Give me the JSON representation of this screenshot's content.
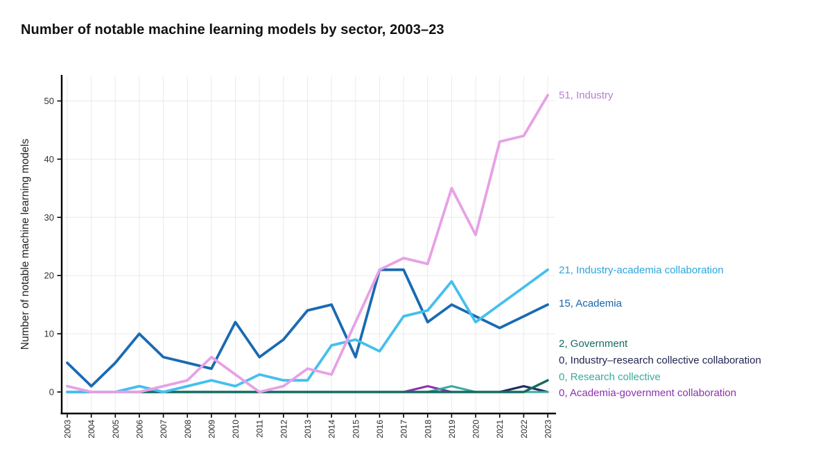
{
  "chart_data": {
    "type": "line",
    "title": "Number of notable machine learning models by sector, 2003–23",
    "ylabel": "Number of notable machine learning models",
    "xlabel": "",
    "grid": true,
    "legend_position": "right-annotations",
    "x": [
      2003,
      2004,
      2005,
      2006,
      2007,
      2008,
      2009,
      2010,
      2011,
      2012,
      2013,
      2014,
      2015,
      2016,
      2017,
      2018,
      2019,
      2020,
      2021,
      2022,
      2023
    ],
    "yticks": [
      0,
      10,
      20,
      30,
      40,
      50
    ],
    "ylim": [
      0,
      54
    ],
    "series": [
      {
        "name": "Industry",
        "label": "51, Industry",
        "final_value": 51,
        "color": "#e7a1e5",
        "label_color": "#b87fd0",
        "values": [
          1,
          0,
          0,
          0,
          1,
          2,
          6,
          3,
          0,
          1,
          4,
          3,
          12,
          21,
          23,
          22,
          35,
          27,
          43,
          44,
          51
        ]
      },
      {
        "name": "Industry-academia collaboration",
        "label": "21, Industry-academia collaboration",
        "final_value": 21,
        "color": "#45bfee",
        "label_color": "#2da4dc",
        "values": [
          0,
          0,
          0,
          1,
          0,
          1,
          2,
          1,
          3,
          2,
          2,
          8,
          9,
          7,
          13,
          14,
          19,
          12,
          15,
          18,
          21
        ]
      },
      {
        "name": "Academia",
        "label": "15, Academia",
        "final_value": 15,
        "color": "#1a6ab3",
        "label_color": "#1565ac",
        "values": [
          5,
          1,
          5,
          10,
          6,
          5,
          4,
          12,
          6,
          9,
          14,
          15,
          6,
          21,
          21,
          12,
          15,
          13,
          11,
          13,
          15
        ]
      },
      {
        "name": "Government",
        "label": "2, Government",
        "final_value": 2,
        "color": "#156a60",
        "label_color": "#156a60",
        "values": [
          0,
          0,
          0,
          0,
          0,
          0,
          0,
          0,
          0,
          0,
          0,
          0,
          0,
          0,
          0,
          0,
          0,
          0,
          0,
          0,
          2
        ]
      },
      {
        "name": "Industry–research collective collaboration",
        "label": "0, Industry–research collective collaboration",
        "final_value": 0,
        "color": "#1d2f5f",
        "label_color": "#22234f",
        "values": [
          0,
          0,
          0,
          0,
          0,
          0,
          0,
          0,
          0,
          0,
          0,
          0,
          0,
          0,
          0,
          0,
          0,
          0,
          0,
          1,
          0
        ]
      },
      {
        "name": "Research collective",
        "label": "0, Research collective",
        "final_value": 0,
        "color": "#39a9a0",
        "label_color": "#39a9a0",
        "values": [
          0,
          0,
          0,
          0,
          0,
          0,
          0,
          0,
          0,
          0,
          0,
          0,
          0,
          0,
          0,
          0,
          1,
          0,
          0,
          0,
          0
        ]
      },
      {
        "name": "Academia-government collaboration",
        "label": "0, Academia-government collaboration",
        "final_value": 0,
        "color": "#8e2fae",
        "label_color": "#8e2fae",
        "values": [
          0,
          0,
          0,
          0,
          0,
          0,
          0,
          0,
          0,
          0,
          0,
          0,
          0,
          0,
          0,
          1,
          0,
          0,
          0,
          1,
          0
        ]
      }
    ]
  }
}
